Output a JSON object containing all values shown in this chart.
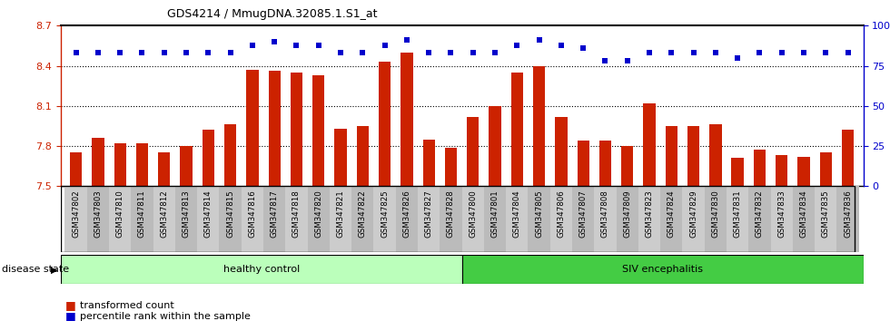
{
  "title": "GDS4214 / MmugDNA.32085.1.S1_at",
  "samples": [
    "GSM347802",
    "GSM347803",
    "GSM347810",
    "GSM347811",
    "GSM347812",
    "GSM347813",
    "GSM347814",
    "GSM347815",
    "GSM347816",
    "GSM347817",
    "GSM347818",
    "GSM347820",
    "GSM347821",
    "GSM347822",
    "GSM347825",
    "GSM347826",
    "GSM347827",
    "GSM347828",
    "GSM347800",
    "GSM347801",
    "GSM347804",
    "GSM347805",
    "GSM347806",
    "GSM347807",
    "GSM347808",
    "GSM347809",
    "GSM347823",
    "GSM347824",
    "GSM347829",
    "GSM347830",
    "GSM347831",
    "GSM347832",
    "GSM347833",
    "GSM347834",
    "GSM347835",
    "GSM347836"
  ],
  "bar_values": [
    7.75,
    7.86,
    7.82,
    7.82,
    7.75,
    7.8,
    7.92,
    7.96,
    8.37,
    8.36,
    8.35,
    8.33,
    7.93,
    7.95,
    8.43,
    8.5,
    7.85,
    7.79,
    8.02,
    8.1,
    8.35,
    8.4,
    8.02,
    7.84,
    7.84,
    7.8,
    8.12,
    7.95,
    7.95,
    7.96,
    7.71,
    7.77,
    7.73,
    7.72,
    7.75,
    7.92
  ],
  "percentile_values": [
    83,
    83,
    83,
    83,
    83,
    83,
    83,
    83,
    88,
    90,
    88,
    88,
    83,
    83,
    88,
    91,
    83,
    83,
    83,
    83,
    88,
    91,
    88,
    86,
    78,
    78,
    83,
    83,
    83,
    83,
    80,
    83,
    83,
    83,
    83,
    83
  ],
  "healthy_count": 18,
  "siv_count": 18,
  "ymin": 7.5,
  "ymax": 8.7,
  "ylim_left": [
    7.5,
    8.7
  ],
  "ylim_right": [
    0,
    100
  ],
  "yticks_left": [
    7.5,
    7.8,
    8.1,
    8.4,
    8.7
  ],
  "yticks_right": [
    0,
    25,
    50,
    75,
    100
  ],
  "bar_color": "#cc2200",
  "dot_color": "#0000cc",
  "healthy_color": "#bbffbb",
  "siv_color": "#44cc44",
  "tickbg_light": "#cccccc",
  "tickbg_dark": "#bbbbbb",
  "legend_bar_label": "transformed count",
  "legend_dot_label": "percentile rank within the sample",
  "disease_state_label": "disease state",
  "healthy_label": "healthy control",
  "siv_label": "SIV encephalitis"
}
